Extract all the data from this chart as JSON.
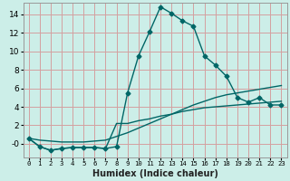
{
  "title": "",
  "xlabel": "Humidex (Indice chaleur)",
  "bg_color": "#cceee8",
  "grid_color": "#d4a0a0",
  "line_color": "#006666",
  "xlim": [
    -0.5,
    23.5
  ],
  "ylim": [
    -1.5,
    15.2
  ],
  "xticks": [
    0,
    1,
    2,
    3,
    4,
    5,
    6,
    7,
    8,
    9,
    10,
    11,
    12,
    13,
    14,
    15,
    16,
    17,
    18,
    19,
    20,
    21,
    22,
    23
  ],
  "yticks": [
    0,
    2,
    4,
    6,
    8,
    10,
    12,
    14
  ],
  "ytick_labels": [
    "-0",
    "2",
    "4",
    "6",
    "8",
    "10",
    "12",
    "14"
  ],
  "line1_x": [
    0,
    1,
    2,
    3,
    4,
    5,
    6,
    7,
    8,
    9,
    10,
    11,
    12,
    13,
    14,
    15,
    16,
    17,
    18,
    19,
    20,
    21,
    22,
    23
  ],
  "line1_y": [
    0.6,
    -0.3,
    -0.7,
    -0.5,
    -0.4,
    -0.4,
    -0.4,
    -0.5,
    -0.3,
    5.5,
    9.5,
    12.1,
    14.8,
    14.1,
    13.3,
    12.7,
    9.5,
    8.5,
    7.3,
    5.0,
    4.5,
    5.0,
    4.2,
    4.2
  ],
  "line2_x": [
    0,
    1,
    2,
    3,
    4,
    5,
    6,
    7,
    8,
    9,
    10,
    11,
    12,
    13,
    14,
    15,
    16,
    17,
    18,
    19,
    20,
    21,
    22,
    23
  ],
  "line2_y": [
    0.6,
    -0.3,
    -0.7,
    -0.5,
    -0.4,
    -0.4,
    -0.4,
    -0.5,
    2.2,
    2.2,
    2.5,
    2.7,
    3.0,
    3.2,
    3.5,
    3.7,
    3.9,
    4.0,
    4.1,
    4.2,
    4.3,
    4.4,
    4.5,
    4.6
  ],
  "line3_x": [
    0,
    1,
    2,
    3,
    4,
    5,
    6,
    7,
    8,
    9,
    10,
    11,
    12,
    13,
    14,
    15,
    16,
    17,
    18,
    19,
    20,
    21,
    22,
    23
  ],
  "line3_y": [
    0.6,
    0.4,
    0.3,
    0.2,
    0.2,
    0.2,
    0.3,
    0.4,
    0.8,
    1.2,
    1.7,
    2.2,
    2.7,
    3.2,
    3.7,
    4.2,
    4.6,
    5.0,
    5.3,
    5.5,
    5.7,
    5.9,
    6.1,
    6.3
  ],
  "xtick_fontsize": 5.2,
  "ytick_fontsize": 6.5,
  "xlabel_fontsize": 7.0,
  "linewidth": 1.0,
  "markersize": 2.5
}
